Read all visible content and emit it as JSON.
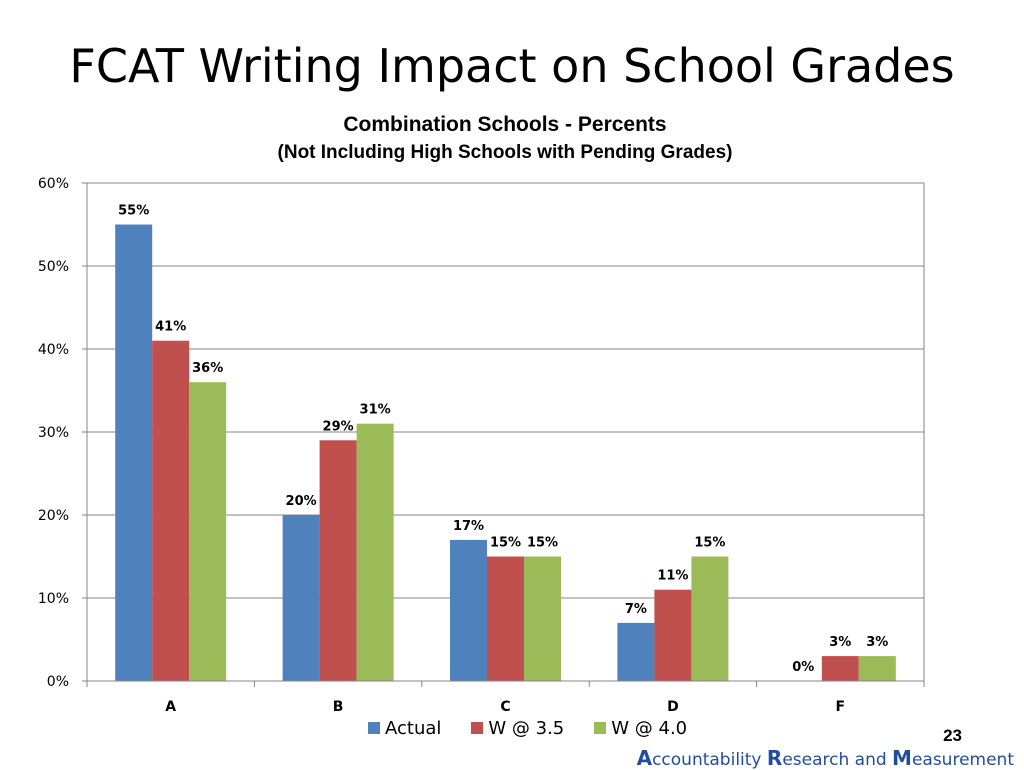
{
  "slide": {
    "title": "FCAT Writing Impact on School Grades",
    "page_number": "23",
    "footer": {
      "a_letter": "A",
      "a_rest": "ccountability ",
      "r_letter": "R",
      "r_rest": "esearch and ",
      "m_letter": "M",
      "m_rest": "easurement"
    }
  },
  "chart_data": {
    "type": "bar",
    "title": "Combination Schools - Percents",
    "subtitle": "(Not Including High Schools with Pending Grades)",
    "categories": [
      "A",
      "B",
      "C",
      "D",
      "F"
    ],
    "series": [
      {
        "name": "Actual",
        "color": "#4f81bd",
        "values": [
          55,
          20,
          17,
          7,
          0
        ]
      },
      {
        "name": "W @ 3.5",
        "color": "#c0504d",
        "values": [
          41,
          29,
          15,
          11,
          3
        ]
      },
      {
        "name": "W @ 4.0",
        "color": "#9bbb59",
        "values": [
          36,
          31,
          15,
          15,
          3
        ]
      }
    ],
    "value_suffix": "%",
    "ylim": [
      0,
      60
    ],
    "yticks": [
      0,
      10,
      20,
      30,
      40,
      50,
      60
    ],
    "ytick_labels": [
      "0%",
      "10%",
      "20%",
      "30%",
      "40%",
      "50%",
      "60%"
    ],
    "grid": true,
    "legend_position": "bottom"
  }
}
